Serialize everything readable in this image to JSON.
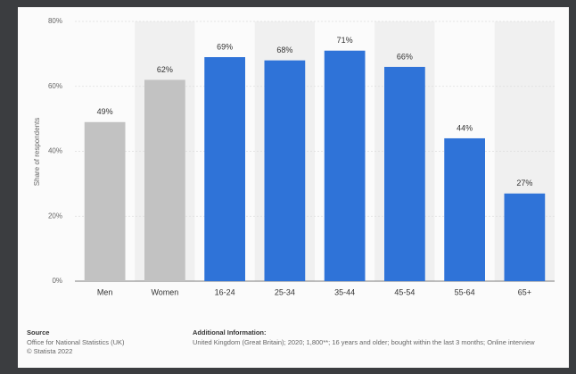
{
  "chart_data": {
    "type": "bar",
    "y_label": "Share of respondents",
    "categories": [
      "Men",
      "Women",
      "16-24",
      "25-34",
      "35-44",
      "45-54",
      "55-64",
      "65+"
    ],
    "values": [
      49,
      62,
      69,
      68,
      71,
      66,
      44,
      27
    ],
    "value_labels": [
      "49%",
      "62%",
      "69%",
      "68%",
      "71%",
      "66%",
      "44%",
      "27%"
    ],
    "colors": [
      "#c2c2c2",
      "#c2c2c2",
      "#2f73d8",
      "#2f73d8",
      "#2f73d8",
      "#2f73d8",
      "#2f73d8",
      "#2f73d8"
    ],
    "ylim": [
      0,
      80
    ],
    "yticks": [
      {
        "value": 0,
        "label": "0%"
      },
      {
        "value": 20,
        "label": "20%"
      },
      {
        "value": 40,
        "label": "40%"
      },
      {
        "value": 60,
        "label": "60%"
      },
      {
        "value": 80,
        "label": "80%"
      }
    ],
    "grid": true
  },
  "footer": {
    "source_heading": "Source",
    "source_lines": [
      "Office for National Statistics (UK)",
      "© Statista 2022"
    ],
    "info_heading": "Additional Information:",
    "info_text": "United Kingdom (Great Britain); 2020; 1,800**; 16 years and older; bought within the last 3 months; Online interview"
  }
}
